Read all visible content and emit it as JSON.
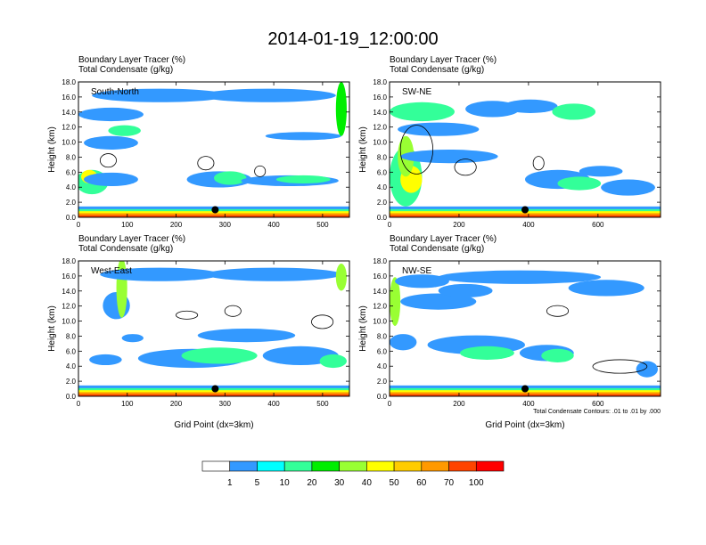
{
  "figure_title": "2014-01-19_12:00:00",
  "chart_data": [
    {
      "type": "heatmap",
      "region": "South-North",
      "title": [
        "Boundary Layer Tracer   (%)",
        "Total Condensate   (g/kg)"
      ],
      "ylabel": "Height (km)",
      "xlabel": "",
      "xlim": [
        0,
        555
      ],
      "ylim": [
        0,
        18
      ],
      "xticks": [
        "0",
        "100",
        "200",
        "300",
        "400",
        "500"
      ],
      "yticks": [
        "0.0",
        "2.0",
        "4.0",
        "6.0",
        "8.0",
        "10.0",
        "12.0",
        "14.0",
        "16.0",
        "18.0"
      ],
      "marker": {
        "x": 280,
        "y": 1.0
      }
    },
    {
      "type": "heatmap",
      "region": "SW-NE",
      "title": [
        "Boundary Layer Tracer   (%)",
        "Total Condensate   (g/kg)"
      ],
      "ylabel": "Height (km)",
      "xlabel": "",
      "xlim": [
        0,
        780
      ],
      "ylim": [
        0,
        18
      ],
      "xticks": [
        "0",
        "200",
        "400",
        "600"
      ],
      "yticks": [
        "0.0",
        "2.0",
        "4.0",
        "6.0",
        "8.0",
        "10.0",
        "12.0",
        "14.0",
        "16.0",
        "18.0"
      ],
      "marker": {
        "x": 390,
        "y": 1.0
      }
    },
    {
      "type": "heatmap",
      "region": "West-East",
      "title": [
        "Boundary Layer Tracer   (%)",
        "Total Condensate   (g/kg)"
      ],
      "ylabel": "Height (km)",
      "xlabel": "Grid Point (dx=3km)",
      "xlim": [
        0,
        555
      ],
      "ylim": [
        0,
        18
      ],
      "xticks": [
        "0",
        "100",
        "200",
        "300",
        "400",
        "500"
      ],
      "yticks": [
        "0.0",
        "2.0",
        "4.0",
        "6.0",
        "8.0",
        "10.0",
        "12.0",
        "14.0",
        "16.0",
        "18.0"
      ],
      "marker": {
        "x": 280,
        "y": 1.0
      }
    },
    {
      "type": "heatmap",
      "region": "NW-SE",
      "title": [
        "Boundary Layer Tracer   (%)",
        "Total Condensate   (g/kg)"
      ],
      "ylabel": "Height (km)",
      "xlabel": "Grid Point (dx=3km)",
      "xlim": [
        0,
        780
      ],
      "ylim": [
        0,
        18
      ],
      "xticks": [
        "0",
        "200",
        "400",
        "600"
      ],
      "yticks": [
        "0.0",
        "2.0",
        "4.0",
        "6.0",
        "8.0",
        "10.0",
        "12.0",
        "14.0",
        "16.0",
        "18.0"
      ],
      "marker": {
        "x": 390,
        "y": 1.0
      },
      "footnote": "Total Condensate Contours: .01 to .01 by .000"
    }
  ],
  "colorbar": {
    "levels": [
      "1",
      "5",
      "10",
      "20",
      "30",
      "40",
      "50",
      "60",
      "70",
      "100"
    ],
    "colors": [
      "#ffffff",
      "#3399ff",
      "#00ffff",
      "#33ff99",
      "#00ee00",
      "#99ff33",
      "#ffff00",
      "#ffcc00",
      "#ff9900",
      "#ff4400",
      "#ff0000"
    ]
  }
}
